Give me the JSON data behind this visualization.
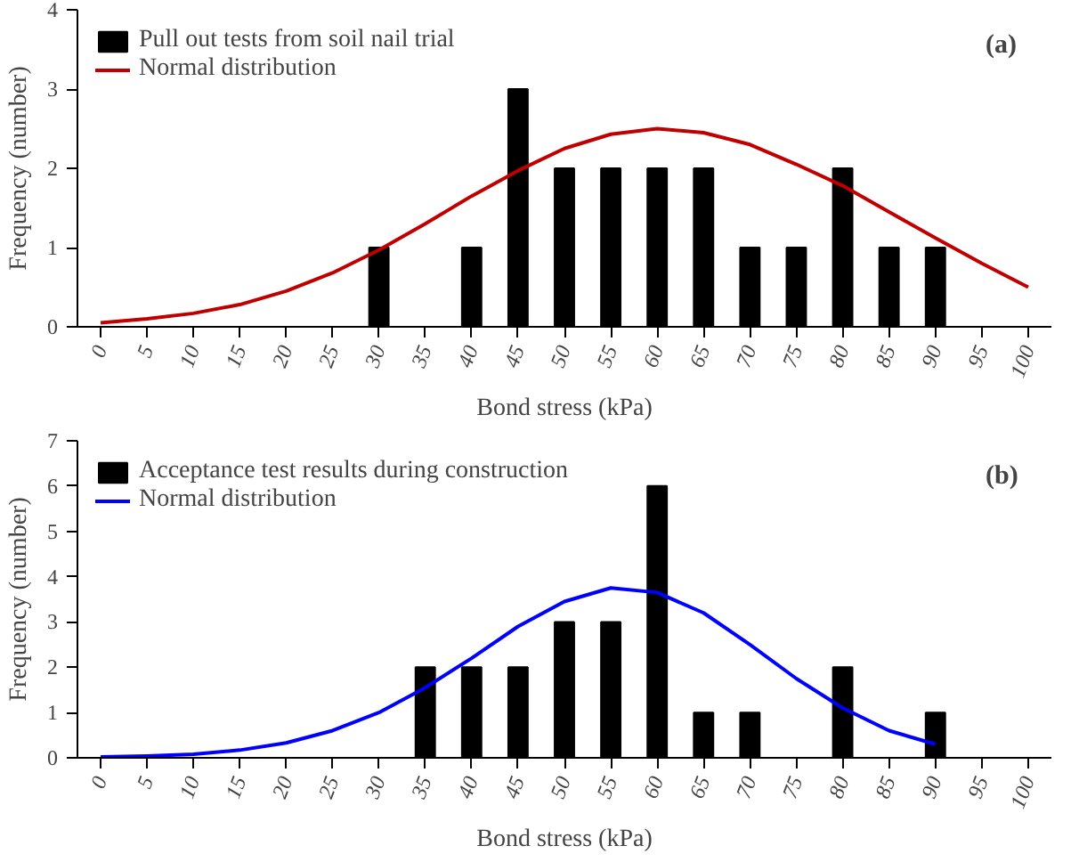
{
  "chart_data": [
    {
      "type": "bar",
      "xlabel": "Bond stress (kPa)",
      "ylabel": "Frequency (number)",
      "annotations": [
        "(a)"
      ],
      "categories": [
        "0",
        "5",
        "10",
        "15",
        "20",
        "25",
        "30",
        "35",
        "40",
        "45",
        "50",
        "55",
        "60",
        "65",
        "70",
        "75",
        "80",
        "85",
        "90",
        "95",
        "100"
      ],
      "ylim": [
        0,
        4
      ],
      "yticks": [
        0,
        1,
        2,
        3,
        4
      ],
      "legend": "top left",
      "grid": false,
      "series": [
        {
          "name": "Pull out tests from soil nail trial",
          "color": "#000000",
          "values": [
            0,
            0,
            0,
            0,
            0,
            0,
            1,
            0,
            1,
            3,
            2,
            2,
            2,
            2,
            1,
            1,
            2,
            1,
            1,
            0,
            0
          ]
        },
        {
          "name": "Normal distribution",
          "type": "line",
          "color": "#c00000",
          "values": [
            0.05,
            0.1,
            0.17,
            0.28,
            0.45,
            0.68,
            0.97,
            1.3,
            1.65,
            1.97,
            2.25,
            2.43,
            2.5,
            2.45,
            2.3,
            2.05,
            1.78,
            1.45,
            1.12,
            0.8,
            0.5
          ]
        }
      ]
    },
    {
      "type": "bar",
      "xlabel": "Bond stress (kPa)",
      "ylabel": "Frequency (number)",
      "annotations": [
        "(b)"
      ],
      "categories": [
        "0",
        "5",
        "10",
        "15",
        "20",
        "25",
        "30",
        "35",
        "40",
        "45",
        "50",
        "55",
        "60",
        "65",
        "70",
        "75",
        "80",
        "85",
        "90",
        "95",
        "100"
      ],
      "ylim": [
        0,
        7
      ],
      "yticks": [
        0,
        1,
        2,
        3,
        4,
        5,
        6,
        7
      ],
      "legend": "top left",
      "grid": false,
      "series": [
        {
          "name": "Acceptance test results during construction",
          "color": "#000000",
          "values": [
            0,
            0,
            0,
            0,
            0,
            0,
            0,
            2,
            2,
            2,
            3,
            3,
            6,
            1,
            1,
            0,
            2,
            0,
            1,
            0,
            0
          ]
        },
        {
          "name": "Normal distribution",
          "type": "line",
          "color": "#0000ff",
          "values": [
            0.02,
            0.04,
            0.08,
            0.17,
            0.33,
            0.6,
            1.0,
            1.55,
            2.2,
            2.9,
            3.45,
            3.75,
            3.65,
            3.2,
            2.5,
            1.75,
            1.1,
            0.6,
            0.3,
            null,
            null
          ]
        }
      ]
    }
  ]
}
